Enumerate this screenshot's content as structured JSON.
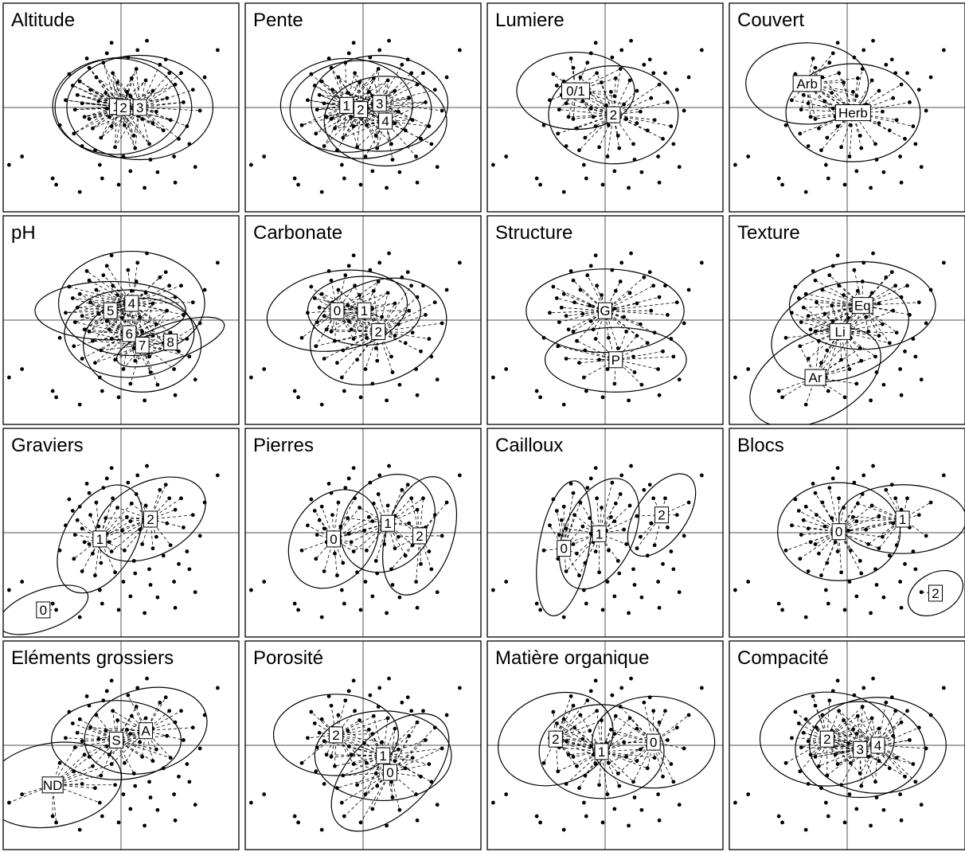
{
  "chart_data": {
    "type": "scatter",
    "layout": "4x4 small multiples",
    "x_range": [
      -1,
      1
    ],
    "y_range": [
      -1,
      1
    ],
    "axes_at_origin": true,
    "axis_color": "#a9a9a9",
    "point_color": "#000000",
    "points": [
      [
        -0.58,
        -0.68
      ],
      [
        -0.55,
        -0.74
      ],
      [
        -0.35,
        -0.81
      ],
      [
        -0.84,
        -0.47
      ],
      [
        -0.44,
        0.32
      ],
      [
        -0.41,
        0.21
      ],
      [
        -0.37,
        0.12
      ],
      [
        -0.33,
        0.04
      ],
      [
        -0.31,
        -0.09
      ],
      [
        -0.27,
        0.38
      ],
      [
        -0.26,
        0.17
      ],
      [
        -0.24,
        -0.2
      ],
      [
        -0.21,
        0.29
      ],
      [
        -0.19,
        0.06
      ],
      [
        -0.17,
        -0.29
      ],
      [
        -0.15,
        0.43
      ],
      [
        -0.13,
        0.14
      ],
      [
        -0.1,
        -0.09
      ],
      [
        -0.07,
        0.33
      ],
      [
        -0.05,
        -0.38
      ],
      [
        -0.03,
        0.24
      ],
      [
        0.01,
        0.02
      ],
      [
        0.03,
        -0.17
      ],
      [
        0.06,
        0.48
      ],
      [
        0.08,
        0.11
      ],
      [
        0.11,
        -0.27
      ],
      [
        0.13,
        0.37
      ],
      [
        0.16,
        0.03
      ],
      [
        0.18,
        -0.11
      ],
      [
        0.21,
        0.26
      ],
      [
        0.24,
        -0.35
      ],
      [
        0.27,
        0.16
      ],
      [
        0.3,
        -0.04
      ],
      [
        0.33,
        0.41
      ],
      [
        0.36,
        -0.22
      ],
      [
        0.39,
        0.09
      ],
      [
        0.42,
        -0.12
      ],
      [
        0.46,
        0.22
      ],
      [
        0.49,
        -0.3
      ],
      [
        0.53,
        0.05
      ],
      [
        0.56,
        -0.18
      ],
      [
        -0.39,
        -0.02
      ],
      [
        -0.29,
        0.47
      ],
      [
        -0.22,
        -0.41
      ],
      [
        -0.12,
        0.52
      ],
      [
        0.02,
        -0.47
      ],
      [
        0.14,
        0.55
      ],
      [
        0.25,
        -0.5
      ],
      [
        0.38,
        0.46
      ],
      [
        0.51,
        0.33
      ],
      [
        -0.47,
        0.07
      ],
      [
        0.61,
        0.17
      ],
      [
        -0.18,
        -0.55
      ],
      [
        0.08,
        -0.61
      ],
      [
        0.31,
        -0.62
      ],
      [
        -0.08,
        0.62
      ],
      [
        0.22,
        0.64
      ],
      [
        0.45,
        -0.47
      ],
      [
        -0.33,
        -0.37
      ],
      [
        0.58,
        -0.35
      ],
      [
        0.67,
        -0.03
      ],
      [
        -0.52,
        -0.17
      ],
      [
        0.71,
        0.29
      ],
      [
        0.82,
        0.55
      ],
      [
        -0.95,
        -0.55
      ],
      [
        -0.02,
        -0.74
      ],
      [
        -0.16,
        -0.68
      ],
      [
        0.2,
        -0.77
      ],
      [
        0.46,
        -0.72
      ],
      [
        0.63,
        -0.57
      ],
      [
        -0.35,
        0.25
      ],
      [
        0.09,
        0.28
      ],
      [
        -0.08,
        -0.18
      ],
      [
        0.41,
        0.33
      ],
      [
        -0.27,
        -0.11
      ],
      [
        0.27,
        -0.15
      ],
      [
        0.12,
        -0.39
      ],
      [
        -0.4,
        -0.25
      ],
      [
        0.05,
        0.15
      ],
      [
        -0.12,
        -0.01
      ]
    ],
    "panels": [
      {
        "title": "Altitude",
        "groups": [
          {
            "label": "1",
            "cx": -0.04,
            "cy": 0.01,
            "rx": 0.54,
            "ry": 0.46,
            "rot": 0
          },
          {
            "label": "2",
            "cx": 0.02,
            "cy": 0.0,
            "rx": 0.58,
            "ry": 0.48,
            "rot": 0
          },
          {
            "label": "3",
            "cx": 0.16,
            "cy": 0.0,
            "rx": 0.62,
            "ry": 0.5,
            "rot": 0
          }
        ]
      },
      {
        "title": "Pente",
        "groups": [
          {
            "label": "1",
            "cx": -0.14,
            "cy": 0.02,
            "rx": 0.56,
            "ry": 0.45,
            "rot": 0
          },
          {
            "label": "2",
            "cx": -0.02,
            "cy": -0.02,
            "rx": 0.6,
            "ry": 0.47,
            "rot": 0
          },
          {
            "label": "3",
            "cx": 0.14,
            "cy": 0.04,
            "rx": 0.58,
            "ry": 0.46,
            "rot": 0
          },
          {
            "label": "4",
            "cx": 0.19,
            "cy": -0.13,
            "rx": 0.52,
            "ry": 0.43,
            "rot": 0
          }
        ]
      },
      {
        "title": "Lumiere",
        "groups": [
          {
            "label": "0/1",
            "cx": -0.25,
            "cy": 0.16,
            "rx": 0.5,
            "ry": 0.37,
            "rot": 0
          },
          {
            "label": "2",
            "cx": 0.07,
            "cy": -0.07,
            "rx": 0.55,
            "ry": 0.47,
            "rot": 0
          }
        ]
      },
      {
        "title": "Couvert",
        "groups": [
          {
            "label": "Arb",
            "cx": -0.34,
            "cy": 0.23,
            "rx": 0.52,
            "ry": 0.39,
            "rot": 0
          },
          {
            "label": "Herb",
            "cx": 0.05,
            "cy": -0.05,
            "rx": 0.57,
            "ry": 0.47,
            "rot": 0
          }
        ]
      },
      {
        "title": "pH",
        "groups": [
          {
            "label": "4",
            "cx": 0.09,
            "cy": 0.16,
            "rx": 0.62,
            "ry": 0.5,
            "rot": 0
          },
          {
            "label": "5",
            "cx": -0.09,
            "cy": 0.09,
            "rx": 0.64,
            "ry": 0.28,
            "rot": 0
          },
          {
            "label": "6",
            "cx": 0.07,
            "cy": -0.13,
            "rx": 0.55,
            "ry": 0.42,
            "rot": 0
          },
          {
            "label": "7",
            "cx": 0.18,
            "cy": -0.24,
            "rx": 0.5,
            "ry": 0.45,
            "rot": 0
          },
          {
            "label": "8",
            "cx": 0.42,
            "cy": -0.21,
            "rx": 0.48,
            "ry": 0.17,
            "rot": -19
          }
        ]
      },
      {
        "title": "Carbonate",
        "groups": [
          {
            "label": "0",
            "cx": -0.22,
            "cy": 0.09,
            "rx": 0.6,
            "ry": 0.38,
            "rot": -9
          },
          {
            "label": "1",
            "cx": 0.01,
            "cy": 0.09,
            "rx": 0.48,
            "ry": 0.33,
            "rot": 0
          },
          {
            "label": "2",
            "cx": 0.13,
            "cy": -0.11,
            "rx": 0.6,
            "ry": 0.48,
            "rot": -22
          }
        ]
      },
      {
        "title": "Structure",
        "groups": [
          {
            "label": "G",
            "cx": 0.0,
            "cy": 0.09,
            "rx": 0.67,
            "ry": 0.4,
            "rot": 0
          },
          {
            "label": "P",
            "cx": 0.09,
            "cy": -0.38,
            "rx": 0.6,
            "ry": 0.31,
            "rot": 0
          }
        ]
      },
      {
        "title": "Texture",
        "groups": [
          {
            "label": "Eq",
            "cx": 0.13,
            "cy": 0.14,
            "rx": 0.62,
            "ry": 0.42,
            "rot": 0
          },
          {
            "label": "Li",
            "cx": -0.06,
            "cy": -0.11,
            "rx": 0.6,
            "ry": 0.45,
            "rot": -19
          },
          {
            "label": "Ar",
            "cx": -0.27,
            "cy": -0.55,
            "rx": 0.6,
            "ry": 0.4,
            "rot": -28
          }
        ]
      },
      {
        "title": "Graviers",
        "groups": [
          {
            "label": "1",
            "cx": -0.18,
            "cy": -0.06,
            "rx": 0.5,
            "ry": 0.34,
            "rot": -60
          },
          {
            "label": "2",
            "cx": 0.25,
            "cy": 0.13,
            "rx": 0.5,
            "ry": 0.35,
            "rot": -27
          },
          {
            "label": "0",
            "cx": -0.66,
            "cy": -0.74,
            "rx": 0.4,
            "ry": 0.19,
            "rot": -20
          }
        ]
      },
      {
        "title": "Pierres",
        "groups": [
          {
            "label": "0",
            "cx": -0.25,
            "cy": -0.06,
            "rx": 0.45,
            "ry": 0.39,
            "rot": -55
          },
          {
            "label": "1",
            "cx": 0.21,
            "cy": 0.09,
            "rx": 0.45,
            "ry": 0.41,
            "rot": -50
          },
          {
            "label": "2",
            "cx": 0.48,
            "cy": -0.03,
            "rx": 0.52,
            "ry": 0.32,
            "rot": -72
          }
        ]
      },
      {
        "title": "Cailloux",
        "groups": [
          {
            "label": "0",
            "cx": -0.35,
            "cy": -0.15,
            "rx": 0.58,
            "ry": 0.24,
            "rot": -80
          },
          {
            "label": "1",
            "cx": -0.05,
            "cy": -0.01,
            "rx": 0.5,
            "ry": 0.33,
            "rot": -65
          },
          {
            "label": "2",
            "cx": 0.48,
            "cy": 0.17,
            "rx": 0.4,
            "ry": 0.24,
            "rot": -55
          }
        ]
      },
      {
        "title": "Blocs",
        "groups": [
          {
            "label": "0",
            "cx": -0.07,
            "cy": 0.01,
            "rx": 0.52,
            "ry": 0.47,
            "rot": 0
          },
          {
            "label": "1",
            "cx": 0.47,
            "cy": 0.13,
            "rx": 0.54,
            "ry": 0.33,
            "rot": 0
          },
          {
            "label": "2",
            "cx": 0.75,
            "cy": -0.58,
            "rx": 0.25,
            "ry": 0.19,
            "rot": -30
          }
        ]
      },
      {
        "title": "Eléments grossiers",
        "groups": [
          {
            "label": "A",
            "cx": 0.21,
            "cy": 0.14,
            "rx": 0.53,
            "ry": 0.4,
            "rot": -15
          },
          {
            "label": "S",
            "cx": -0.04,
            "cy": 0.05,
            "rx": 0.55,
            "ry": 0.38,
            "rot": 0
          },
          {
            "label": "ND",
            "cx": -0.58,
            "cy": -0.38,
            "rx": 0.59,
            "ry": 0.4,
            "rot": -10
          }
        ]
      },
      {
        "title": "Porosité",
        "groups": [
          {
            "label": "2",
            "cx": -0.23,
            "cy": 0.1,
            "rx": 0.53,
            "ry": 0.39,
            "rot": 0
          },
          {
            "label": "1",
            "cx": 0.17,
            "cy": -0.1,
            "rx": 0.58,
            "ry": 0.43,
            "rot": 0
          },
          {
            "label": "0",
            "cx": 0.23,
            "cy": -0.26,
            "rx": 0.62,
            "ry": 0.38,
            "rot": -45
          }
        ]
      },
      {
        "title": "Matière organique",
        "groups": [
          {
            "label": "2",
            "cx": -0.42,
            "cy": 0.06,
            "rx": 0.5,
            "ry": 0.43,
            "rot": -20
          },
          {
            "label": "1",
            "cx": -0.03,
            "cy": -0.06,
            "rx": 0.53,
            "ry": 0.45,
            "rot": 0
          },
          {
            "label": "0",
            "cx": 0.41,
            "cy": 0.03,
            "rx": 0.52,
            "ry": 0.44,
            "rot": 0
          }
        ]
      },
      {
        "title": "Compacité",
        "groups": [
          {
            "label": "2",
            "cx": -0.17,
            "cy": 0.06,
            "rx": 0.57,
            "ry": 0.45,
            "rot": 0
          },
          {
            "label": "3",
            "cx": 0.11,
            "cy": -0.04,
            "rx": 0.55,
            "ry": 0.46,
            "rot": 0
          },
          {
            "label": "4",
            "cx": 0.26,
            "cy": 0.0,
            "rx": 0.58,
            "ry": 0.46,
            "rot": 0
          }
        ]
      }
    ]
  }
}
